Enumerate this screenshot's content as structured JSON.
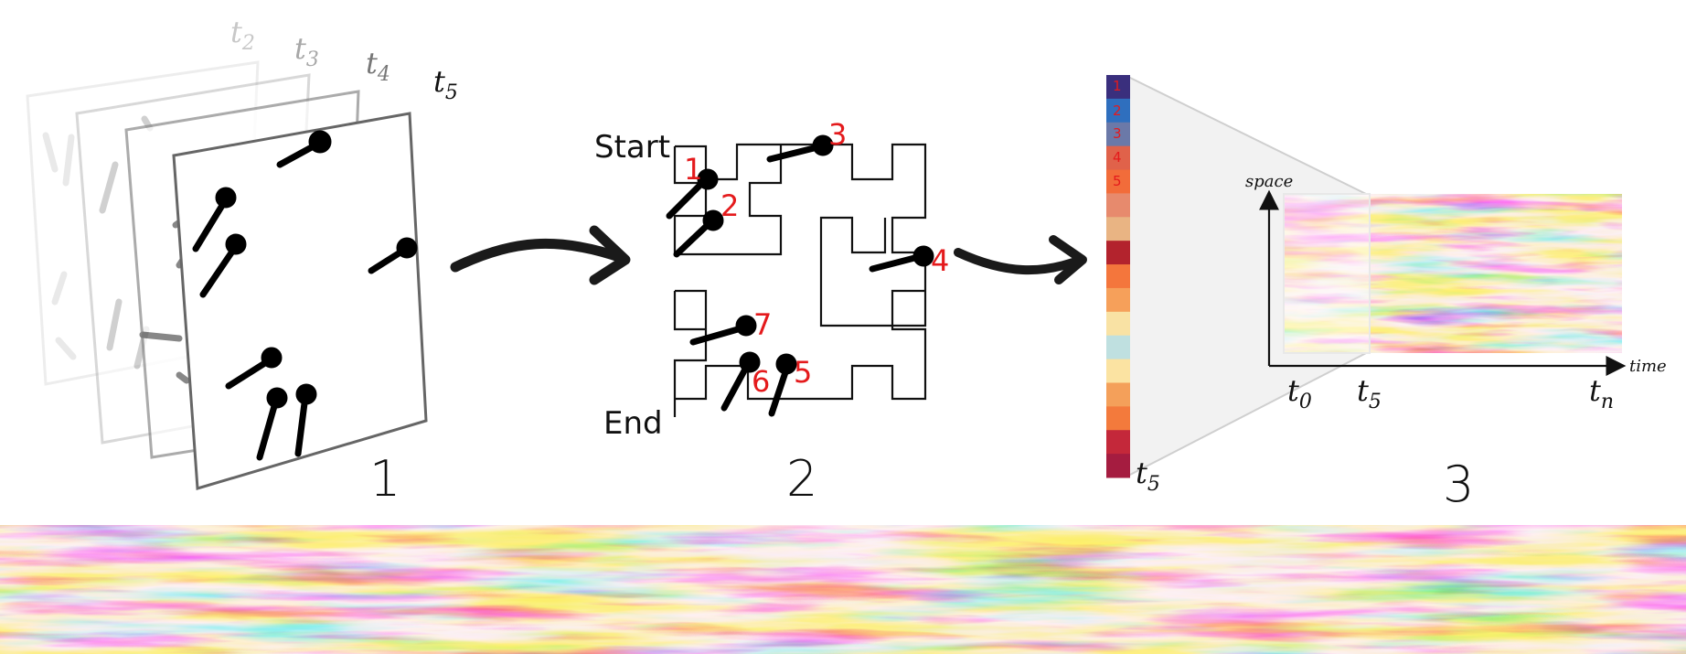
{
  "panel1": {
    "frame_labels": [
      {
        "base": "t",
        "sub": "2"
      },
      {
        "base": "t",
        "sub": "3"
      },
      {
        "base": "t",
        "sub": "4"
      },
      {
        "base": "t",
        "sub": "5"
      }
    ],
    "step_number": "1"
  },
  "panel2": {
    "start_label": "Start",
    "end_label": "End",
    "point_labels": [
      "1",
      "2",
      "3",
      "4",
      "5",
      "6",
      "7"
    ],
    "step_number": "2"
  },
  "panel3": {
    "column_labels": [
      "1",
      "2",
      "3",
      "4",
      "5"
    ],
    "column_time": {
      "base": "t",
      "sub": "5"
    },
    "space_label": "space",
    "time_label": "time",
    "axis_ticks": [
      {
        "base": "t",
        "sub": "0"
      },
      {
        "base": "t",
        "sub": "5"
      },
      {
        "base": "t",
        "sub": "n"
      }
    ],
    "step_number": "3"
  },
  "colors": {
    "text": "#111111",
    "red_label": "#e41a1c",
    "arrow": "#1a1a1a"
  }
}
